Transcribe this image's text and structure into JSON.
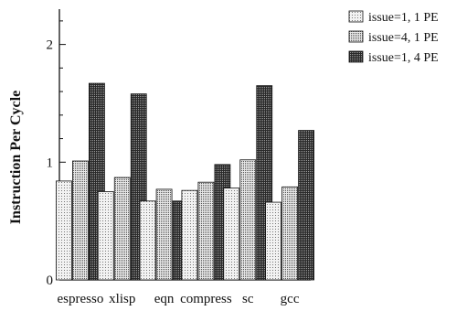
{
  "chart_data": {
    "type": "bar",
    "title": "",
    "xlabel": "",
    "ylabel": "Instruction Per Cycle",
    "ylim": [
      0,
      2.3
    ],
    "yticks": [
      0,
      1,
      2
    ],
    "grid": false,
    "legend_position": "top-right",
    "categories": [
      "espresso",
      "xlisp",
      "eqn",
      "compress",
      "sc",
      "gcc"
    ],
    "series": [
      {
        "name": "issue=1, 1 PE",
        "pattern": "light-dots",
        "values": [
          0.84,
          0.75,
          0.67,
          0.76,
          0.78,
          0.66
        ]
      },
      {
        "name": "issue=4, 1 PE",
        "pattern": "medium-dots",
        "values": [
          1.01,
          0.87,
          0.77,
          0.83,
          1.02,
          0.79
        ]
      },
      {
        "name": "issue=1, 4 PE",
        "pattern": "dark-dots",
        "values": [
          1.67,
          1.58,
          0.67,
          0.98,
          1.65,
          1.27
        ]
      }
    ]
  }
}
